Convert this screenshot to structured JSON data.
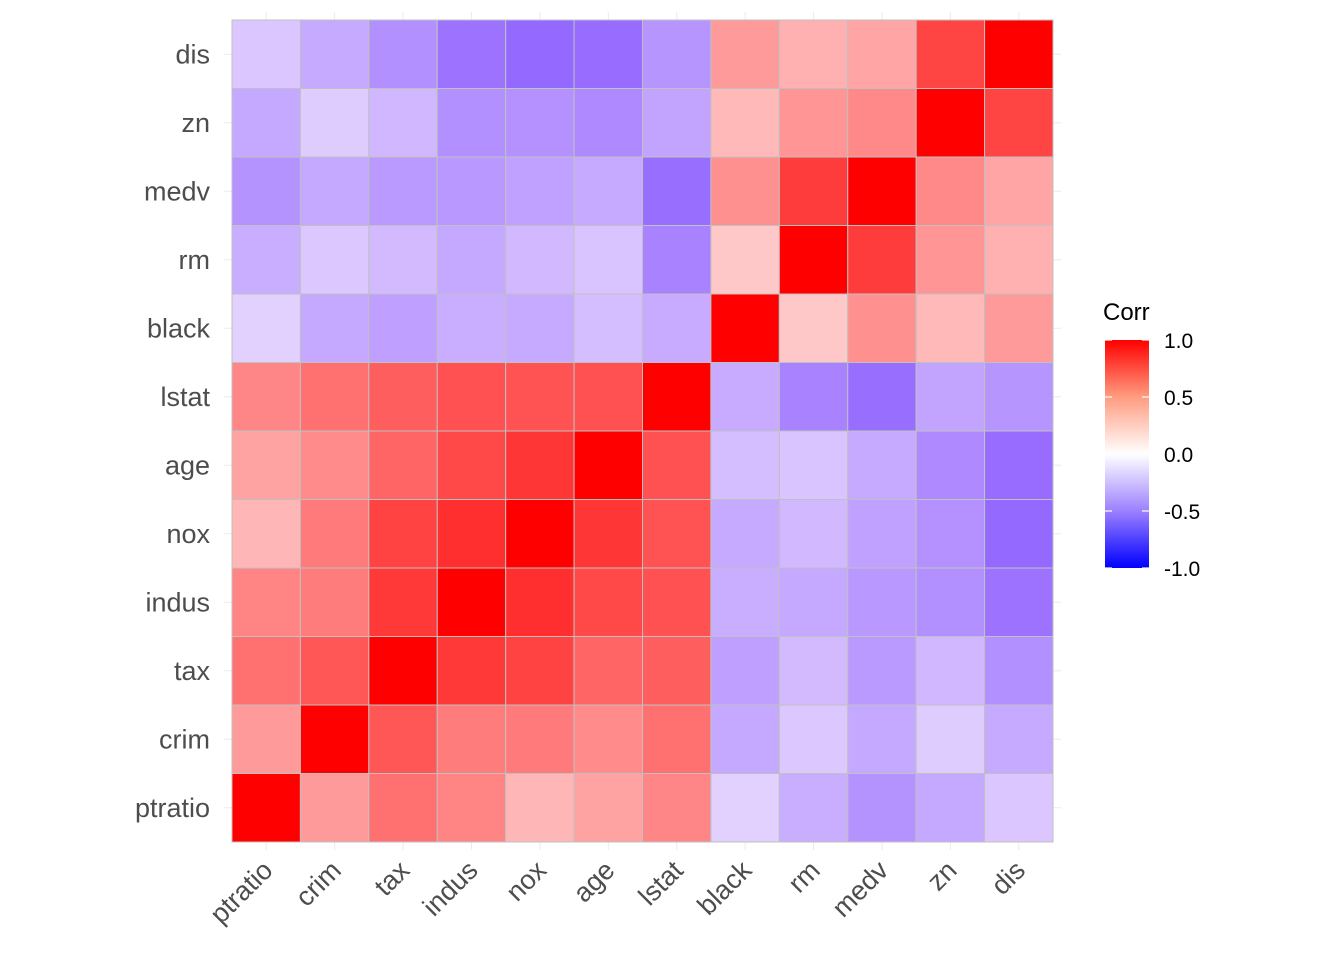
{
  "chart_data": {
    "type": "heatmap",
    "title": "",
    "xlabel": "",
    "ylabel": "",
    "variables": [
      "ptratio",
      "crim",
      "tax",
      "indus",
      "nox",
      "age",
      "lstat",
      "black",
      "rm",
      "medv",
      "zn",
      "dis"
    ],
    "x_categories": [
      "ptratio",
      "crim",
      "tax",
      "indus",
      "nox",
      "age",
      "lstat",
      "black",
      "rm",
      "medv",
      "zn",
      "dis"
    ],
    "y_categories_bottom_to_top": [
      "ptratio",
      "crim",
      "tax",
      "indus",
      "nox",
      "age",
      "lstat",
      "black",
      "rm",
      "medv",
      "zn",
      "dis"
    ],
    "matrix": [
      [
        1.0,
        0.29,
        0.46,
        0.38,
        0.19,
        0.26,
        0.37,
        -0.18,
        -0.36,
        -0.51,
        -0.39,
        -0.23
      ],
      [
        0.29,
        1.0,
        0.58,
        0.41,
        0.42,
        0.35,
        0.46,
        -0.39,
        -0.22,
        -0.39,
        -0.2,
        -0.38
      ],
      [
        0.46,
        0.58,
        1.0,
        0.72,
        0.67,
        0.51,
        0.54,
        -0.44,
        -0.29,
        -0.47,
        -0.31,
        -0.53
      ],
      [
        0.38,
        0.41,
        0.72,
        1.0,
        0.76,
        0.64,
        0.6,
        -0.36,
        -0.39,
        -0.48,
        -0.53,
        -0.71
      ],
      [
        0.19,
        0.42,
        0.67,
        0.76,
        1.0,
        0.73,
        0.59,
        -0.38,
        -0.3,
        -0.43,
        -0.52,
        -0.77
      ],
      [
        0.26,
        0.35,
        0.51,
        0.64,
        0.73,
        1.0,
        0.6,
        -0.27,
        -0.24,
        -0.38,
        -0.57,
        -0.75
      ],
      [
        0.37,
        0.46,
        0.54,
        0.6,
        0.59,
        0.6,
        1.0,
        -0.37,
        -0.61,
        -0.74,
        -0.41,
        -0.5
      ],
      [
        -0.18,
        -0.39,
        -0.44,
        -0.36,
        -0.38,
        -0.27,
        -0.37,
        1.0,
        0.13,
        0.33,
        0.18,
        0.29
      ],
      [
        -0.36,
        -0.22,
        -0.29,
        -0.39,
        -0.3,
        -0.24,
        -0.61,
        0.13,
        1.0,
        0.7,
        0.31,
        0.21
      ],
      [
        -0.51,
        -0.39,
        -0.47,
        -0.48,
        -0.43,
        -0.38,
        -0.74,
        0.33,
        0.7,
        1.0,
        0.36,
        0.25
      ],
      [
        -0.39,
        -0.2,
        -0.31,
        -0.53,
        -0.52,
        -0.57,
        -0.41,
        0.18,
        0.31,
        0.36,
        1.0,
        0.66
      ],
      [
        -0.23,
        -0.38,
        -0.53,
        -0.71,
        -0.77,
        -0.75,
        -0.5,
        0.29,
        0.21,
        0.25,
        0.66,
        1.0
      ]
    ],
    "color_scale": {
      "low": "#0000FF",
      "mid": "#FFFFFF",
      "high": "#FF0000",
      "limits": [
        -1,
        1
      ]
    },
    "legend": {
      "title": "Corr",
      "position": "right",
      "breaks": [
        1.0,
        0.5,
        0.0,
        -0.5,
        -1.0
      ],
      "labels": [
        "1.0",
        "0.5",
        "0.0",
        "-0.5",
        "-1.0"
      ]
    },
    "grid": true,
    "cell_outline_color": "#C0C0C0"
  }
}
